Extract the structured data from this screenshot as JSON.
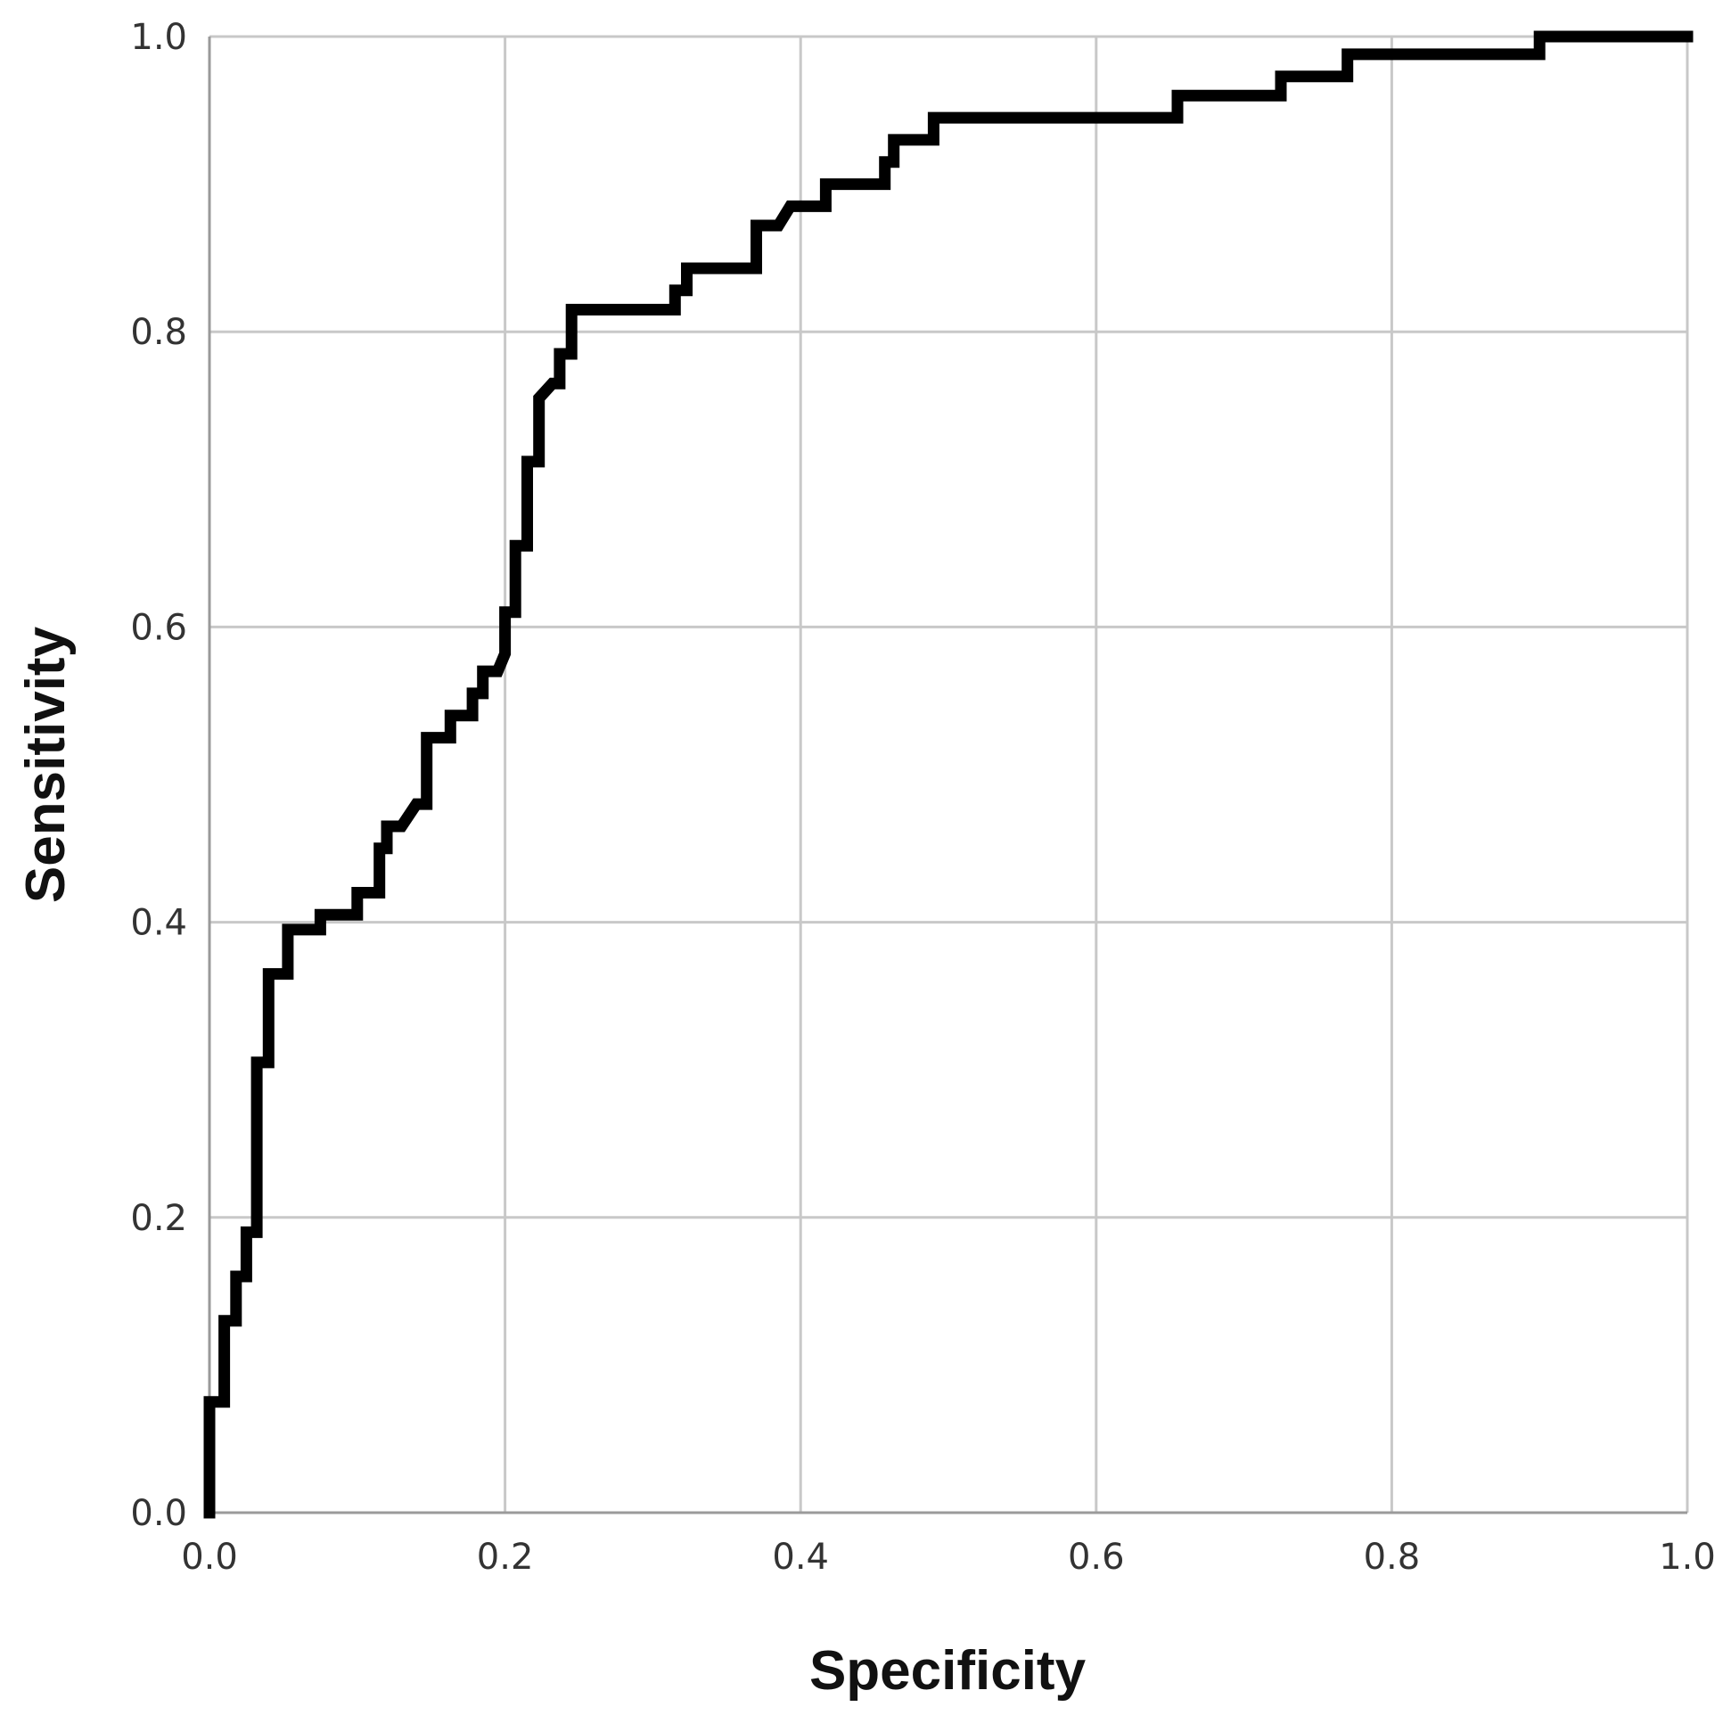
{
  "chart_data": {
    "type": "line",
    "xlabel": "Specificity",
    "ylabel": "Sensitivity",
    "xlim": [
      0.0,
      1.0
    ],
    "ylim": [
      0.0,
      1.0
    ],
    "x_ticks": [
      "0.0",
      "0.2",
      "0.4",
      "0.6",
      "0.8",
      "1.0"
    ],
    "y_ticks": [
      "0.0",
      "0.2",
      "0.4",
      "0.6",
      "0.8",
      "1.0"
    ],
    "grid": true,
    "line_color": "#000000",
    "grid_color": "#c8c8c8",
    "series": [
      {
        "values": [
          [
            0.0,
            0.0
          ],
          [
            0.0,
            0.075
          ],
          [
            0.01,
            0.075
          ],
          [
            0.01,
            0.13
          ],
          [
            0.018,
            0.13
          ],
          [
            0.018,
            0.16
          ],
          [
            0.025,
            0.16
          ],
          [
            0.025,
            0.19
          ],
          [
            0.032,
            0.19
          ],
          [
            0.032,
            0.305
          ],
          [
            0.04,
            0.305
          ],
          [
            0.04,
            0.365
          ],
          [
            0.053,
            0.365
          ],
          [
            0.053,
            0.395
          ],
          [
            0.075,
            0.395
          ],
          [
            0.075,
            0.405
          ],
          [
            0.1,
            0.405
          ],
          [
            0.1,
            0.42
          ],
          [
            0.115,
            0.42
          ],
          [
            0.115,
            0.45
          ],
          [
            0.12,
            0.45
          ],
          [
            0.12,
            0.465
          ],
          [
            0.13,
            0.465
          ],
          [
            0.14,
            0.48
          ],
          [
            0.147,
            0.48
          ],
          [
            0.147,
            0.525
          ],
          [
            0.163,
            0.525
          ],
          [
            0.163,
            0.54
          ],
          [
            0.178,
            0.54
          ],
          [
            0.178,
            0.555
          ],
          [
            0.185,
            0.555
          ],
          [
            0.185,
            0.57
          ],
          [
            0.195,
            0.57
          ],
          [
            0.2,
            0.582
          ],
          [
            0.2,
            0.61
          ],
          [
            0.207,
            0.61
          ],
          [
            0.207,
            0.655
          ],
          [
            0.215,
            0.655
          ],
          [
            0.215,
            0.712
          ],
          [
            0.223,
            0.712
          ],
          [
            0.223,
            0.755
          ],
          [
            0.232,
            0.765
          ],
          [
            0.237,
            0.765
          ],
          [
            0.237,
            0.785
          ],
          [
            0.245,
            0.785
          ],
          [
            0.245,
            0.815
          ],
          [
            0.315,
            0.815
          ],
          [
            0.315,
            0.828
          ],
          [
            0.323,
            0.828
          ],
          [
            0.323,
            0.843
          ],
          [
            0.37,
            0.843
          ],
          [
            0.37,
            0.872
          ],
          [
            0.385,
            0.872
          ],
          [
            0.393,
            0.885
          ],
          [
            0.417,
            0.885
          ],
          [
            0.417,
            0.9
          ],
          [
            0.457,
            0.9
          ],
          [
            0.457,
            0.915
          ],
          [
            0.463,
            0.915
          ],
          [
            0.463,
            0.93
          ],
          [
            0.49,
            0.93
          ],
          [
            0.49,
            0.945
          ],
          [
            0.655,
            0.945
          ],
          [
            0.655,
            0.96
          ],
          [
            0.725,
            0.96
          ],
          [
            0.725,
            0.973
          ],
          [
            0.77,
            0.973
          ],
          [
            0.77,
            0.988
          ],
          [
            0.9,
            0.988
          ],
          [
            0.9,
            1.0
          ],
          [
            1.0,
            1.0
          ]
        ]
      }
    ]
  }
}
